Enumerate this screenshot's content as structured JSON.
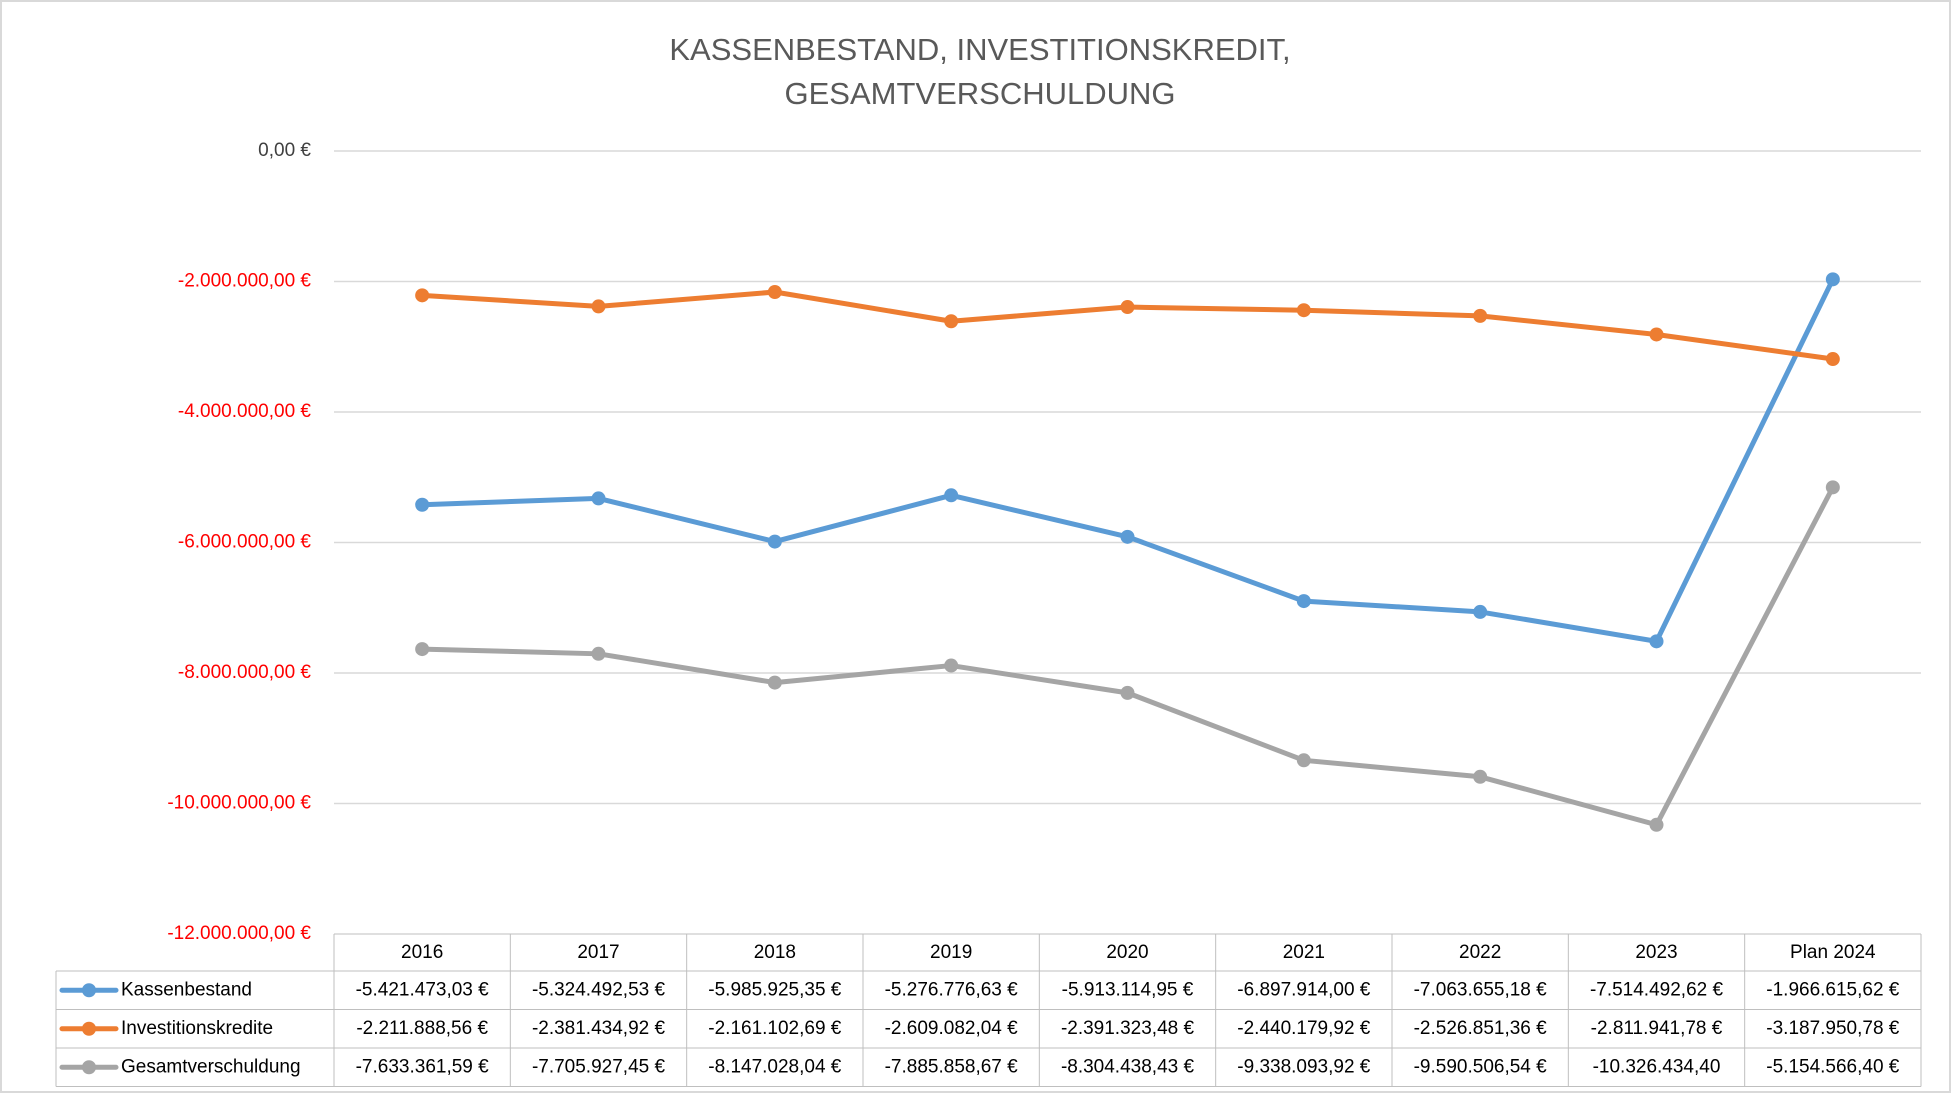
{
  "chart_data": {
    "type": "line",
    "title": [
      "KASSENBESTAND, INVESTITIONSKREDIT,",
      "GESAMTVERSCHULDUNG"
    ],
    "categories": [
      "2016",
      "2017",
      "2018",
      "2019",
      "2020",
      "2021",
      "2022",
      "2023",
      "Plan 2024"
    ],
    "series": [
      {
        "name": "Kassenbestand",
        "color": "#5b9bd5",
        "values": [
          -5421473.03,
          -5324492.53,
          -5985925.35,
          -5276776.63,
          -5913114.95,
          -6897914.0,
          -7063655.18,
          -7514492.62,
          -1966615.62
        ],
        "value_labels": [
          "-5.421.473,03 €",
          "-5.324.492,53 €",
          "-5.985.925,35 €",
          "-5.276.776,63 €",
          "-5.913.114,95 €",
          "-6.897.914,00 €",
          "-7.063.655,18 €",
          "-7.514.492,62 €",
          "-1.966.615,62 €"
        ]
      },
      {
        "name": "Investitionskredite",
        "color": "#ed7d31",
        "values": [
          -2211888.56,
          -2381434.92,
          -2161102.69,
          -2609082.04,
          -2391323.48,
          -2440179.92,
          -2526851.36,
          -2811941.78,
          -3187950.78
        ],
        "value_labels": [
          "-2.211.888,56 €",
          "-2.381.434,92 €",
          "-2.161.102,69 €",
          "-2.609.082,04 €",
          "-2.391.323,48 €",
          "-2.440.179,92 €",
          "-2.526.851,36 €",
          "-2.811.941,78 €",
          "-3.187.950,78 €"
        ]
      },
      {
        "name": "Gesamtverschuldung",
        "color": "#a5a5a5",
        "values": [
          -7633361.59,
          -7705927.45,
          -8147028.04,
          -7885858.67,
          -8304438.43,
          -9338093.92,
          -9590506.54,
          -10326434.4,
          -5154566.4
        ],
        "value_labels": [
          "-7.633.361,59 €",
          "-7.705.927,45 €",
          "-8.147.028,04 €",
          "-7.885.858,67 €",
          "-8.304.438,43 €",
          "-9.338.093,92 €",
          "-9.590.506,54 €",
          "-10.326.434,40",
          "-5.154.566,40 €"
        ]
      }
    ],
    "ylim": [
      -12000000,
      0
    ],
    "yticks": [
      {
        "value": 0,
        "label": "0,00 €"
      },
      {
        "value": -2000000,
        "label": "-2.000.000,00 €"
      },
      {
        "value": -4000000,
        "label": "-4.000.000,00 €"
      },
      {
        "value": -6000000,
        "label": "-6.000.000,00 €"
      },
      {
        "value": -8000000,
        "label": "-8.000.000,00 €"
      },
      {
        "value": -10000000,
        "label": "-10.000.000,00 €"
      },
      {
        "value": -12000000,
        "label": "-12.000.000,00 €"
      }
    ],
    "negative_tick_color": "#ff0000",
    "grid": true
  }
}
